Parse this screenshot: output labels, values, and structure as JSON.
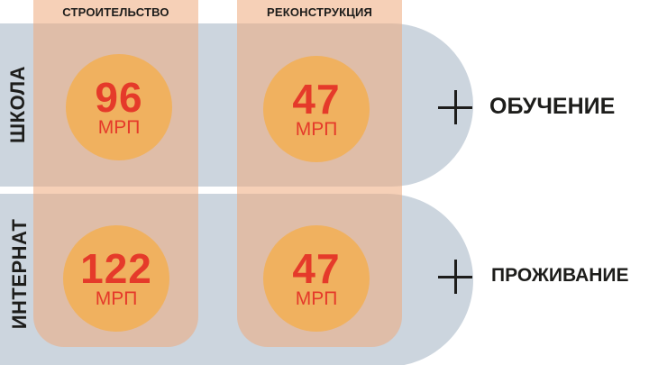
{
  "columns": [
    {
      "label": "СТРОИТЕЛЬСТВО"
    },
    {
      "label": "РЕКОНСТРУКЦИЯ"
    }
  ],
  "rows": [
    {
      "label": "ШКОЛА",
      "cells": [
        {
          "value": "96",
          "unit": "МРП"
        },
        {
          "value": "47",
          "unit": "МРП"
        }
      ],
      "addon": "ОБУЧЕНИЕ"
    },
    {
      "label": "ИНТЕРНАТ",
      "cells": [
        {
          "value": "122",
          "unit": "МРП"
        },
        {
          "value": "47",
          "unit": "МРП"
        }
      ],
      "addon": "ПРОЖИВАНИЕ"
    }
  ],
  "colors": {
    "band": "#ccd5de",
    "column": "#eea97c",
    "circle": "#f0b15f",
    "number": "#e53a2a",
    "text": "#1d1d1b"
  }
}
